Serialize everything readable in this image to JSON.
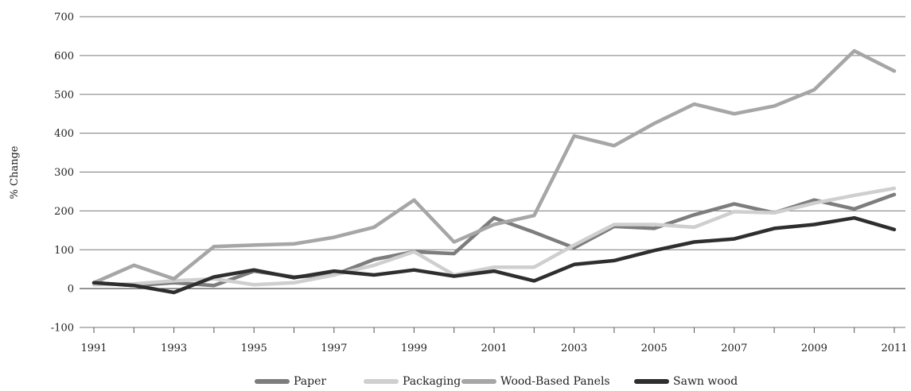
{
  "chart_data": {
    "type": "line",
    "title": "",
    "xlabel": "",
    "ylabel": "% Change",
    "ylim": [
      -100,
      700
    ],
    "yticks": [
      -100,
      0,
      100,
      200,
      300,
      400,
      500,
      600,
      700
    ],
    "grid": "horizontal",
    "legend_position": "bottom",
    "x": [
      1991,
      1992,
      1993,
      1994,
      1995,
      1996,
      1997,
      1998,
      1999,
      2000,
      2001,
      2002,
      2003,
      2004,
      2005,
      2006,
      2007,
      2008,
      2009,
      2010,
      2011
    ],
    "xtick_labels": [
      "1991",
      "1993",
      "1995",
      "1997",
      "1999",
      "2001",
      "2003",
      "2005",
      "2007",
      "2009",
      "2011"
    ],
    "series": [
      {
        "name": "Paper",
        "color": "#7d7d7d",
        "values": [
          15,
          8,
          15,
          8,
          45,
          30,
          35,
          75,
          95,
          90,
          182,
          145,
          105,
          160,
          155,
          190,
          218,
          195,
          228,
          205,
          242
        ]
      },
      {
        "name": "Packaging",
        "color": "#cfcfcf",
        "values": [
          10,
          12,
          20,
          25,
          10,
          15,
          35,
          60,
          95,
          35,
          55,
          55,
          112,
          165,
          165,
          158,
          198,
          195,
          220,
          240,
          258
        ]
      },
      {
        "name": "Wood-Based Panels",
        "color": "#a6a6a6",
        "values": [
          15,
          60,
          25,
          108,
          112,
          115,
          132,
          158,
          228,
          120,
          165,
          188,
          393,
          368,
          425,
          475,
          450,
          470,
          512,
          612,
          560
        ]
      },
      {
        "name": "Sawn wood",
        "color": "#2e2e2e",
        "values": [
          15,
          8,
          -10,
          30,
          48,
          28,
          45,
          35,
          48,
          32,
          45,
          20,
          62,
          72,
          98,
          120,
          128,
          155,
          165,
          182,
          152
        ]
      }
    ]
  }
}
